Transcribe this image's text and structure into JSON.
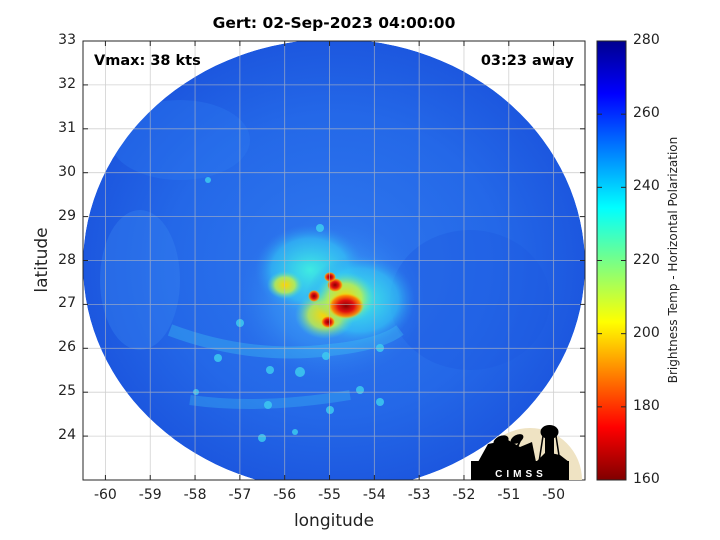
{
  "title": "Gert: 02-Sep-2023 04:00:00",
  "annotations": {
    "vmax": "Vmax: 38 kts",
    "time_away": "03:23 away"
  },
  "axes": {
    "xlabel": "longitude",
    "ylabel": "latitude",
    "xlim": [
      -60.5,
      -49.3
    ],
    "ylim": [
      23,
      33
    ],
    "xticks": [
      "-60",
      "-59",
      "-58",
      "-57",
      "-56",
      "-55",
      "-54",
      "-53",
      "-52",
      "-51",
      "-50"
    ],
    "yticks": [
      "24",
      "25",
      "26",
      "27",
      "28",
      "29",
      "30",
      "31",
      "32",
      "33"
    ],
    "grid": true
  },
  "colorbar": {
    "label": "Brightness Temp - Horizontal Polarization",
    "ticks": [
      "160",
      "180",
      "200",
      "220",
      "240",
      "260",
      "280"
    ],
    "range": [
      160,
      280
    ],
    "colormap": "jet"
  },
  "logo": {
    "text": "CIMSS"
  },
  "colors": {
    "background_field": "#1f5fe6",
    "ring_edge": "#1a4ad8",
    "cold_core": "#8b0000"
  }
}
